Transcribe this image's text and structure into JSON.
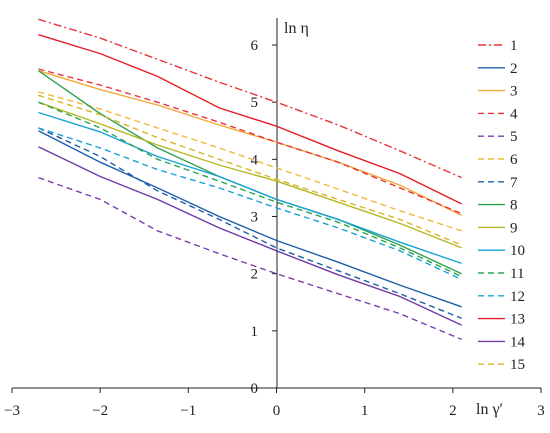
{
  "chart_data": {
    "type": "line",
    "xlabel": "ln γ′",
    "ylabel": "ln η",
    "xlim": [
      -3,
      3
    ],
    "ylim": [
      0,
      6.5
    ],
    "x_ticks": [
      "−3",
      "−2",
      "−1",
      "0",
      "1",
      "2",
      "3"
    ],
    "y_ticks": [
      "0",
      "1",
      "2",
      "3",
      "4",
      "5",
      "6"
    ],
    "grid": false,
    "legend_position": "right",
    "series": [
      {
        "name": "1",
        "color": "#e8343b",
        "dash": "dashdot",
        "x": [
          -2.7,
          -2.0,
          -1.35,
          -0.65,
          0,
          0.7,
          1.4,
          2.1
        ],
        "y": [
          6.45,
          6.12,
          5.75,
          5.35,
          5.0,
          4.6,
          4.15,
          3.68
        ]
      },
      {
        "name": "2",
        "color": "#1f5fa8",
        "dash": "solid",
        "x": [
          -2.7,
          -2.0,
          -1.35,
          -0.65,
          0,
          0.7,
          1.4,
          2.1
        ],
        "y": [
          4.5,
          3.95,
          3.5,
          3.0,
          2.58,
          2.2,
          1.8,
          1.42
        ]
      },
      {
        "name": "3",
        "color": "#f2a93b",
        "dash": "solid",
        "x": [
          -2.7,
          -2.0,
          -1.35,
          -0.65,
          0,
          0.7,
          1.4,
          2.1
        ],
        "y": [
          5.55,
          5.22,
          4.95,
          4.6,
          4.3,
          3.95,
          3.55,
          3.02
        ]
      },
      {
        "name": "4",
        "color": "#e8343b",
        "dash": "dashed",
        "x": [
          -2.7,
          -2.0,
          -1.35,
          -0.65,
          0,
          0.7,
          1.4,
          2.1
        ],
        "y": [
          5.58,
          5.3,
          5.0,
          4.65,
          4.3,
          3.95,
          3.5,
          3.05
        ]
      },
      {
        "name": "5",
        "color": "#7a3fb0",
        "dash": "dashed",
        "x": [
          -2.7,
          -2.0,
          -1.35,
          -0.65,
          0,
          0.7,
          1.4,
          2.1
        ],
        "y": [
          3.68,
          3.3,
          2.75,
          2.35,
          2.0,
          1.65,
          1.3,
          0.85
        ]
      },
      {
        "name": "6",
        "color": "#f2b73b",
        "dash": "dashed",
        "x": [
          -2.7,
          -2.0,
          -1.35,
          -0.65,
          0,
          0.7,
          1.4,
          2.1
        ],
        "y": [
          5.18,
          4.88,
          4.55,
          4.2,
          3.85,
          3.48,
          3.1,
          2.75
        ]
      },
      {
        "name": "7",
        "color": "#1f5fa8",
        "dash": "dashed",
        "x": [
          -2.7,
          -2.0,
          -1.35,
          -0.65,
          0,
          0.7,
          1.4,
          2.1
        ],
        "y": [
          4.55,
          4.05,
          3.45,
          2.95,
          2.45,
          2.05,
          1.65,
          1.22
        ]
      },
      {
        "name": "8",
        "color": "#2ea351",
        "dash": "solid",
        "x": [
          -2.7,
          -2.0,
          -1.35,
          -0.65,
          0,
          0.7,
          1.4,
          2.1
        ],
        "y": [
          5.55,
          4.8,
          4.2,
          3.7,
          3.3,
          2.95,
          2.5,
          2.0
        ]
      },
      {
        "name": "9",
        "color": "#b5b823",
        "dash": "solid",
        "x": [
          -2.7,
          -2.0,
          -1.35,
          -0.65,
          0,
          0.7,
          1.4,
          2.1
        ],
        "y": [
          5.0,
          4.62,
          4.25,
          3.9,
          3.62,
          3.25,
          2.88,
          2.45
        ]
      },
      {
        "name": "10",
        "color": "#17a2d6",
        "dash": "solid",
        "x": [
          -2.7,
          -2.0,
          -1.35,
          -0.65,
          0,
          0.7,
          1.4,
          2.1
        ],
        "y": [
          4.82,
          4.48,
          4.05,
          3.7,
          3.3,
          2.95,
          2.55,
          2.18
        ]
      },
      {
        "name": "11",
        "color": "#2ea351",
        "dash": "dashed",
        "x": [
          -2.7,
          -2.0,
          -1.35,
          -0.65,
          0,
          0.7,
          1.4,
          2.1
        ],
        "y": [
          5.0,
          4.55,
          4.0,
          3.62,
          3.25,
          2.9,
          2.45,
          1.95
        ]
      },
      {
        "name": "12",
        "color": "#17a2d6",
        "dash": "dashed",
        "x": [
          -2.7,
          -2.0,
          -1.35,
          -0.65,
          0,
          0.7,
          1.4,
          2.1
        ],
        "y": [
          4.55,
          4.2,
          3.82,
          3.5,
          3.15,
          2.8,
          2.4,
          1.9
        ]
      },
      {
        "name": "13",
        "color": "#e41e26",
        "dash": "solid",
        "x": [
          -2.7,
          -2.0,
          -1.35,
          -0.65,
          0,
          0.7,
          1.4,
          2.1
        ],
        "y": [
          6.18,
          5.85,
          5.45,
          4.9,
          4.58,
          4.15,
          3.75,
          3.22
        ]
      },
      {
        "name": "14",
        "color": "#6f3aa8",
        "dash": "solid",
        "x": [
          -2.7,
          -2.0,
          -1.35,
          -0.65,
          0,
          0.7,
          1.4,
          2.1
        ],
        "y": [
          4.22,
          3.7,
          3.3,
          2.8,
          2.4,
          1.98,
          1.6,
          1.1
        ]
      },
      {
        "name": "15",
        "color": "#d9b52a",
        "dash": "dashed",
        "x": [
          -2.7,
          -2.0,
          -1.35,
          -0.65,
          0,
          0.7,
          1.4,
          2.1
        ],
        "y": [
          5.12,
          4.78,
          4.38,
          4.0,
          3.65,
          3.3,
          2.95,
          2.5
        ]
      }
    ]
  }
}
